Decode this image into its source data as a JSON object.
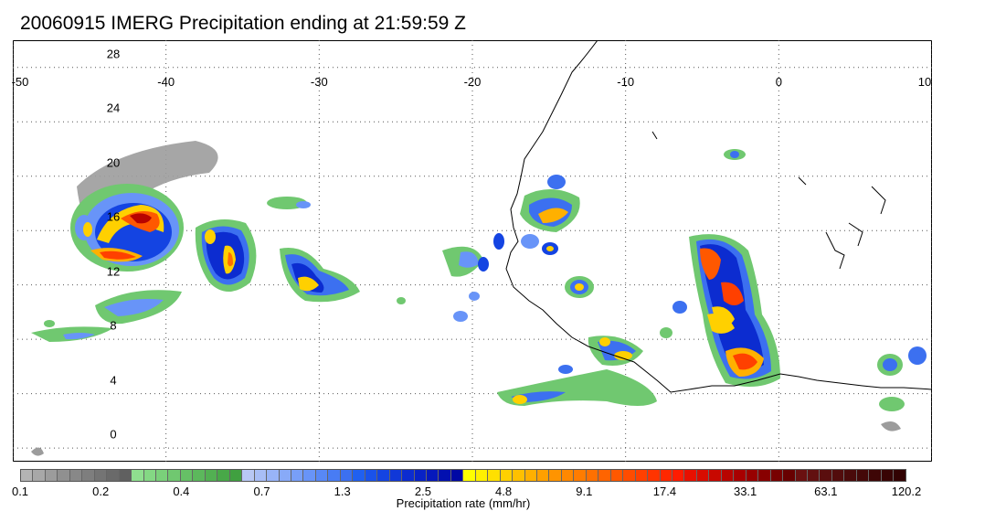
{
  "title": "20060915 IMERG Precipitation ending at 21:59:59 Z",
  "map": {
    "lon_range": [
      -50,
      10
    ],
    "lat_range": [
      -1,
      30
    ],
    "lon_ticks": [
      "-50",
      "-40",
      "-30",
      "-20",
      "-10",
      "0",
      "10"
    ],
    "lat_ticks": [
      "28",
      "24",
      "20",
      "16",
      "12",
      "8",
      "4",
      "0"
    ],
    "grid": "dotted"
  },
  "colorbar": {
    "label": "Precipitation rate (mm/hr)",
    "ticks": [
      "0.1",
      "0.2",
      "0.4",
      "0.7",
      "1.3",
      "2.5",
      "4.8",
      "9.1",
      "17.4",
      "33.1",
      "63.1",
      "120.2"
    ],
    "colors": [
      "#b4b4b4",
      "#a8a8a8",
      "#9c9c9c",
      "#909090",
      "#888888",
      "#7e7e7e",
      "#747474",
      "#6a6a6a",
      "#606060",
      "#8fdf8f",
      "#84d884",
      "#7ad07a",
      "#70c870",
      "#66c066",
      "#5cb85c",
      "#52b052",
      "#48a848",
      "#40a040",
      "#b8c8f4",
      "#a8bef6",
      "#98b4f8",
      "#88aaf8",
      "#789ff8",
      "#6894f8",
      "#5888f6",
      "#487cf4",
      "#3c70f0",
      "#2060f0",
      "#1a52ea",
      "#1444e2",
      "#1038d8",
      "#0c2cd0",
      "#0822c6",
      "#0518bc",
      "#0210b0",
      "#0008a4",
      "#ffff00",
      "#fff000",
      "#ffe000",
      "#ffd000",
      "#ffc000",
      "#ffb000",
      "#ffa000",
      "#ff9400",
      "#ff8800",
      "#ff7c00",
      "#ff7000",
      "#ff6400",
      "#ff5800",
      "#ff4c00",
      "#ff4000",
      "#ff3400",
      "#ff2800",
      "#ff1c00",
      "#e81000",
      "#d80c00",
      "#c80800",
      "#b80400",
      "#a80000",
      "#980000",
      "#880000",
      "#780000",
      "#680000",
      "#6a1010",
      "#621010",
      "#5a0e0e",
      "#520c0c",
      "#4a0a0a",
      "#440808",
      "#3e0606",
      "#380404",
      "#320202"
    ]
  }
}
